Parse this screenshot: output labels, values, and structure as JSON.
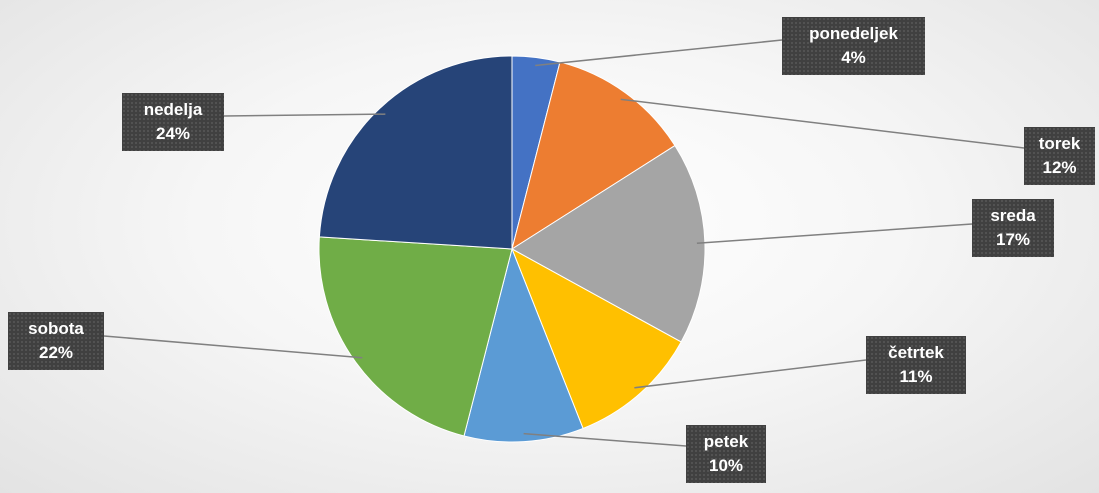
{
  "colors": {
    "ponedeljek": "#4472C4",
    "torek": "#ED7D31",
    "sreda": "#A5A5A5",
    "cetrtek": "#FFC000",
    "petek": "#5B9BD5",
    "sobota": "#70AD47",
    "nedelja": "#264478",
    "label_background": "#404040",
    "leader_line": "#808080"
  },
  "chart_data": {
    "type": "pie",
    "title": "",
    "start_angle_deg": 0,
    "direction": "clockwise",
    "data_labels": "category_and_percent",
    "legend": "none",
    "slices": [
      {
        "label": "ponedeljek",
        "value": 4,
        "percent_label": "4%"
      },
      {
        "label": "torek",
        "value": 12,
        "percent_label": "12%"
      },
      {
        "label": "sreda",
        "value": 17,
        "percent_label": "17%"
      },
      {
        "label": "četrtek",
        "value": 11,
        "percent_label": "11%"
      },
      {
        "label": "petek",
        "value": 10,
        "percent_label": "10%"
      },
      {
        "label": "sobota",
        "value": 22,
        "percent_label": "22%"
      },
      {
        "label": "nedelja",
        "value": 24,
        "percent_label": "24%"
      }
    ]
  }
}
